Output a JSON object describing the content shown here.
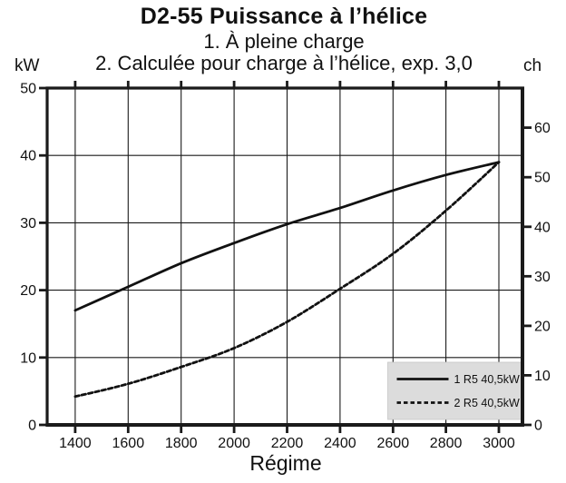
{
  "header": {
    "title": "D2-55 Puissance à l’hélice",
    "subtitle1": "1. À pleine charge",
    "subtitle2": "2. Calculée pour charge à l’hélice, exp. 3,0"
  },
  "axes": {
    "left_unit": "kW",
    "right_unit": "ch",
    "x_label": "Régime"
  },
  "chart_data": {
    "type": "line",
    "title": "D2-55 Puissance à l’hélice",
    "xlabel": "Régime",
    "ylabel_left": "kW",
    "ylabel_right": "ch",
    "x": [
      1400,
      1600,
      1800,
      2000,
      2200,
      2400,
      2600,
      2800,
      3000
    ],
    "series": [
      {
        "name": "1 R5 40,5kW",
        "line_style": "solid",
        "values": [
          17,
          20.5,
          24,
          27,
          29.8,
          32.2,
          34.8,
          37.1,
          39
        ]
      },
      {
        "name": "2 R5 40,5kW",
        "line_style": "dashed",
        "values": [
          4.2,
          6.1,
          8.6,
          11.4,
          15.3,
          20.2,
          25.4,
          31.8,
          39
        ]
      }
    ],
    "xlim": [
      1294,
      3089
    ],
    "ylim_left": [
      0,
      50
    ],
    "ylim_right": [
      0,
      68
    ],
    "x_ticks": [
      1400,
      1600,
      1800,
      2000,
      2200,
      2400,
      2600,
      2800,
      3000
    ],
    "y_ticks_left": [
      0,
      10,
      20,
      30,
      40,
      50
    ],
    "y_ticks_right": [
      0,
      10,
      20,
      30,
      40,
      50,
      60
    ],
    "grid": true,
    "legend_position": "bottom-right"
  },
  "legend": {
    "items": [
      {
        "label": "1 R5 40,5kW",
        "style": "solid"
      },
      {
        "label": "2 R5 40,5kW",
        "style": "dashed"
      }
    ]
  },
  "colors": {
    "ink": "#111111",
    "grid": "#1a1a1a",
    "legend_bg": "#dcdcdc",
    "legend_border": "#c6c6c6",
    "background": "#ffffff"
  }
}
